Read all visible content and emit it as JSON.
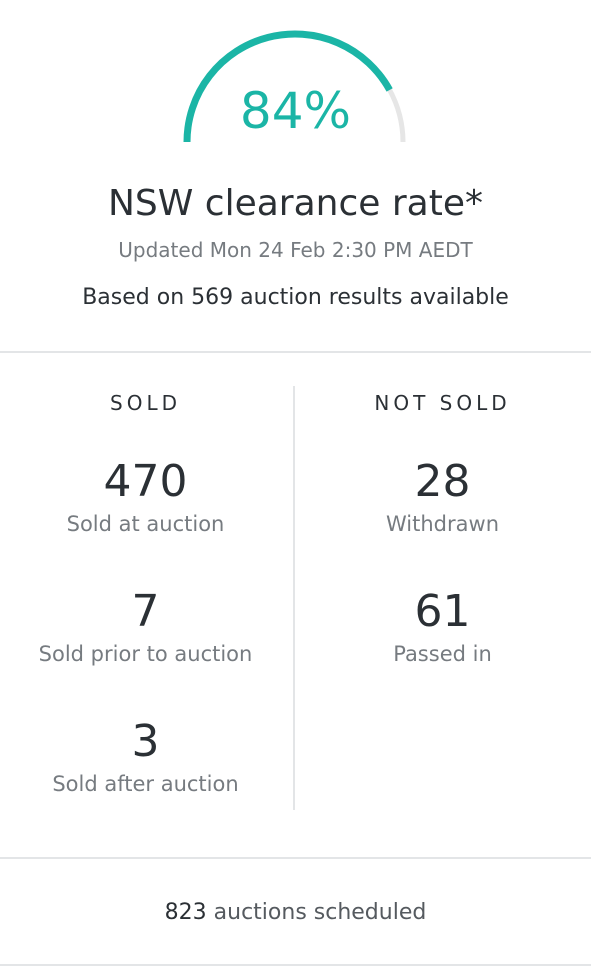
{
  "clearance": {
    "percent": 0.84,
    "value_label": "84%",
    "accent_color": "#1bb5a6",
    "track_color": "#e6e6e6"
  },
  "header": {
    "title": "NSW clearance rate*",
    "updated": "Updated Mon 24 Feb 2:30 PM AEDT",
    "based_prefix": "Based on",
    "based_count": "569",
    "based_suffix": "auction results available"
  },
  "sold": {
    "heading": "SOLD",
    "items": [
      {
        "value": "470",
        "label": "Sold at auction"
      },
      {
        "value": "7",
        "label": "Sold prior to auction"
      },
      {
        "value": "3",
        "label": "Sold after auction"
      }
    ]
  },
  "not_sold": {
    "heading": "NOT SOLD",
    "items": [
      {
        "value": "28",
        "label": "Withdrawn"
      },
      {
        "value": "61",
        "label": "Passed in"
      }
    ]
  },
  "footer": {
    "scheduled_count": "823",
    "scheduled_label": "auctions scheduled"
  }
}
